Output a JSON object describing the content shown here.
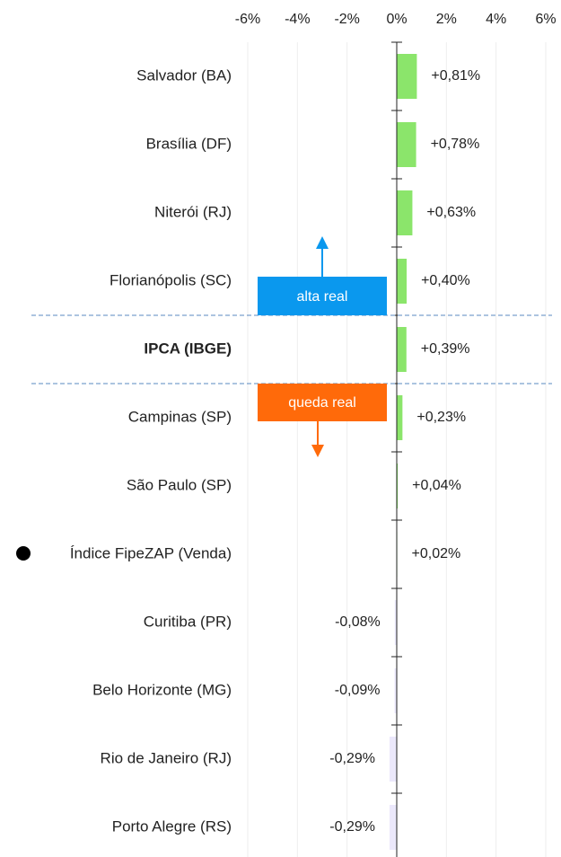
{
  "chart_data": {
    "type": "hbar",
    "categories": [
      "Salvador (BA)",
      "Brasília (DF)",
      "Niterói (RJ)",
      "Florianópolis (SC)",
      "IPCA (IBGE)",
      "Campinas (SP)",
      "São Paulo (SP)",
      "Índice FipeZAP (Venda)",
      "Curitiba (PR)",
      "Belo Horizonte (MG)",
      "Rio de Janeiro (RJ)",
      "Porto Alegre (RS)"
    ],
    "values": [
      0.81,
      0.78,
      0.63,
      0.4,
      0.39,
      0.23,
      0.04,
      0.02,
      -0.08,
      -0.09,
      -0.29,
      -0.29
    ],
    "value_labels": [
      "+0,81%",
      "+0,78%",
      "+0,63%",
      "+0,40%",
      "+0,39%",
      "+0,23%",
      "+0,04%",
      "+0,02%",
      "-0,08%",
      "-0,09%",
      "-0,29%",
      "-0,29%"
    ],
    "color": "#8be56b",
    "negative_color": "#ebe8fb",
    "xlim": [
      -6,
      6
    ],
    "xticks": [
      {
        "value": -6,
        "label": "-6%"
      },
      {
        "value": -4,
        "label": "-4%"
      },
      {
        "value": -2,
        "label": "-2%"
      },
      {
        "value": 0,
        "label": "0%"
      },
      {
        "value": 2,
        "label": "2%"
      },
      {
        "value": 4,
        "label": "4%"
      },
      {
        "value": 6,
        "label": "6%"
      }
    ],
    "grid": true,
    "highlight_index": 4,
    "bullet_index": 7,
    "annotations": [
      {
        "text": "alta real",
        "color": "#0a98ee"
      },
      {
        "text": "queda real",
        "color": "#ff6a0a"
      }
    ]
  }
}
